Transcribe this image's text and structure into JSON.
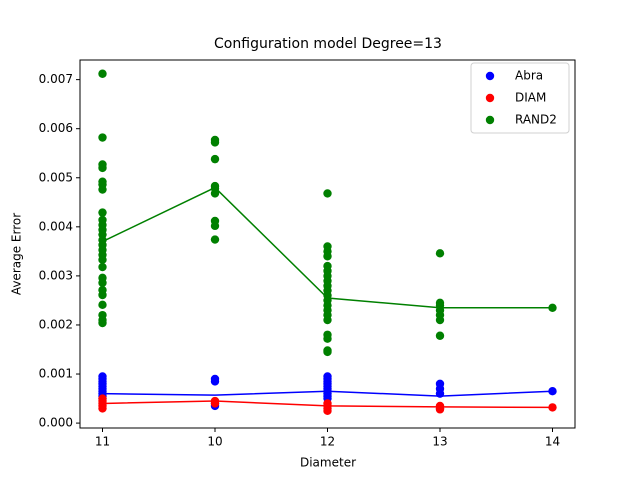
{
  "chart_data": {
    "type": "scatter",
    "title": "Configuration model Degree=13",
    "x_label": "Diameter",
    "y_label": "Average Error",
    "categories": [
      "11",
      "10",
      "12",
      "13",
      "14"
    ],
    "ylim": [
      -0.0001,
      0.0074
    ],
    "yticks": [
      {
        "value": 0,
        "label": "0.000"
      },
      0.001,
      0.002,
      0.003,
      0.004,
      0.005,
      0.006,
      0.007
    ],
    "legend": "upper right",
    "series": [
      {
        "name": "Abra",
        "color": "#0000ff",
        "values": [
          [
            0.00095,
            0.0009,
            0.00085,
            0.0008,
            0.00075,
            0.0007,
            0.00065,
            0.0006,
            0.00055,
            0.0005
          ],
          [
            0.0009,
            0.00085,
            0.0004,
            0.00035
          ],
          [
            0.00095,
            0.0009,
            0.00085,
            0.0008,
            0.00075,
            0.0007,
            0.00065,
            0.0006,
            0.00055,
            0.0005
          ],
          [
            0.0008,
            0.0007,
            0.0006,
            0.0003
          ],
          [
            0.00065
          ]
        ],
        "line_values": [
          0.0006,
          0.00057,
          0.00065,
          0.00055,
          0.00065
        ]
      },
      {
        "name": "DIAM",
        "color": "#ff0000",
        "values": [
          [
            0.0005,
            0.00045,
            0.0004,
            0.00035,
            0.0003
          ],
          [
            0.00045,
            0.0004
          ],
          [
            0.0004,
            0.00035,
            0.0003,
            0.00025
          ],
          [
            0.00035,
            0.0003,
            0.00028
          ],
          [
            0.00032
          ]
        ],
        "line_values": [
          0.0004,
          0.00045,
          0.00035,
          0.00033,
          0.00032
        ]
      },
      {
        "name": "RAND2",
        "color": "#008000",
        "values": [
          [
            0.00712,
            0.00582,
            0.00527,
            0.0052,
            0.00492,
            0.00486,
            0.00476,
            0.00429,
            0.00414,
            0.00404,
            0.00394,
            0.00384,
            0.00373,
            0.00363,
            0.00353,
            0.00343,
            0.00333,
            0.00318,
            0.00296,
            0.00286,
            0.00271,
            0.00261,
            0.00241,
            0.0022,
            0.0021,
            0.00204
          ],
          [
            0.00577,
            0.00572,
            0.00538,
            0.00483,
            0.00478,
            0.00468,
            0.00412,
            0.00402,
            0.00374
          ],
          [
            0.00468,
            0.0036,
            0.0035,
            0.0034,
            0.0032,
            0.0031,
            0.003,
            0.0029,
            0.0028,
            0.0027,
            0.0026,
            0.0025,
            0.0024,
            0.0023,
            0.0022,
            0.0021,
            0.0018,
            0.00172,
            0.00148,
            0.00145
          ],
          [
            0.00346,
            0.00245,
            0.0024,
            0.0023,
            0.0022,
            0.0021,
            0.00178
          ],
          [
            0.00235
          ]
        ],
        "line_values": [
          0.0037,
          0.0048,
          0.00255,
          0.00235,
          0.00235
        ]
      }
    ]
  }
}
